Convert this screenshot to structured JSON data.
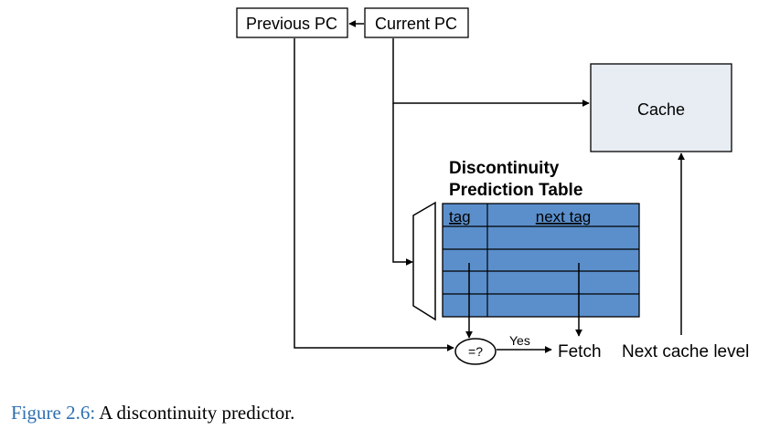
{
  "diagram": {
    "previous_pc": "Previous PC",
    "current_pc": "Current PC",
    "cache": "Cache",
    "table_title_line1": "Discontinuity",
    "table_title_line2": "Prediction Table",
    "col_tag": "tag",
    "col_next_tag": "next tag",
    "comparator": "=?",
    "yes": "Yes",
    "fetch": "Fetch",
    "next_cache_level": "Next cache level",
    "colors": {
      "cache_fill": "#e8edf4",
      "table_fill": "#5b8fcc",
      "caption_accent": "#2f6fb0"
    }
  },
  "caption": {
    "figure_label": "Figure 2.6:",
    "text": "A discontinuity predictor."
  }
}
